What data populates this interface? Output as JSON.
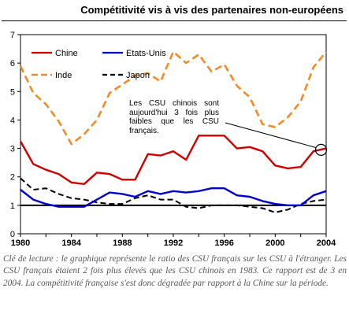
{
  "chart_data": {
    "type": "line",
    "title": "Compétitivité vis à vis des partenaires non-européens",
    "xlabel": "",
    "ylabel": "",
    "xlim": [
      1980,
      2004
    ],
    "ylim": [
      0,
      7
    ],
    "xticks": [
      "1980",
      "1984",
      "1988",
      "1992",
      "1996",
      "2000",
      "2004"
    ],
    "yticks": [
      "0",
      "1",
      "2",
      "3",
      "4",
      "5",
      "6",
      "7"
    ],
    "grid": false,
    "legend_position": "top-left",
    "x": [
      1980,
      1981,
      1982,
      1983,
      1984,
      1985,
      1986,
      1987,
      1988,
      1989,
      1990,
      1991,
      1992,
      1993,
      1994,
      1995,
      1996,
      1997,
      1998,
      1999,
      2000,
      2001,
      2002,
      2003,
      2004
    ],
    "series": [
      {
        "name": "Chine",
        "color": "#cc0000",
        "style": "solid",
        "values": [
          3.25,
          2.45,
          2.25,
          2.1,
          1.8,
          1.75,
          2.15,
          2.1,
          1.9,
          1.9,
          2.8,
          2.75,
          2.9,
          2.6,
          3.45,
          3.45,
          3.45,
          3.0,
          3.05,
          2.9,
          2.4,
          2.3,
          2.35,
          2.9,
          3.0
        ]
      },
      {
        "name": "Etats-Unis",
        "color": "#0000cc",
        "style": "solid",
        "values": [
          1.55,
          1.2,
          1.05,
          0.95,
          0.95,
          0.95,
          1.2,
          1.45,
          1.4,
          1.3,
          1.5,
          1.4,
          1.5,
          1.45,
          1.5,
          1.6,
          1.6,
          1.35,
          1.3,
          1.15,
          1.05,
          1.0,
          1.0,
          1.35,
          1.5
        ]
      },
      {
        "name": "Inde",
        "color": "#f08c28",
        "style": "dashed",
        "values": [
          5.9,
          4.95,
          4.55,
          3.95,
          3.15,
          3.5,
          4.0,
          4.95,
          5.25,
          5.55,
          5.65,
          5.35,
          6.4,
          6.0,
          6.3,
          5.7,
          5.95,
          5.2,
          4.8,
          3.85,
          3.75,
          4.1,
          4.65,
          5.85,
          6.4
        ]
      },
      {
        "name": "Japon",
        "color": "#000000",
        "style": "dashed",
        "values": [
          1.95,
          1.55,
          1.6,
          1.4,
          1.25,
          1.2,
          1.1,
          1.05,
          1.05,
          1.25,
          1.35,
          1.2,
          1.2,
          0.95,
          0.9,
          1.0,
          1.0,
          1.0,
          0.95,
          0.9,
          0.75,
          0.85,
          1.05,
          1.15,
          1.2
        ]
      }
    ],
    "reference_line": {
      "y": 1,
      "color": "#000000"
    },
    "annotation": {
      "text": "Les CSU chinois sont aujourd'hui 3 fois plus faibles que les CSU français.",
      "target_x": 2003.6,
      "target_y": 2.95
    }
  },
  "caption": "Clé de lecture : le graphique représente le ratio des CSU français sur les CSU à l'étranger. Les CSU français étaient 2 fois plus élevés que les CSU chinois en 1983. Ce rapport est de 3 en 2004. La compétitivité française s'est donc dégradée par rapport à la Chine sur la période."
}
